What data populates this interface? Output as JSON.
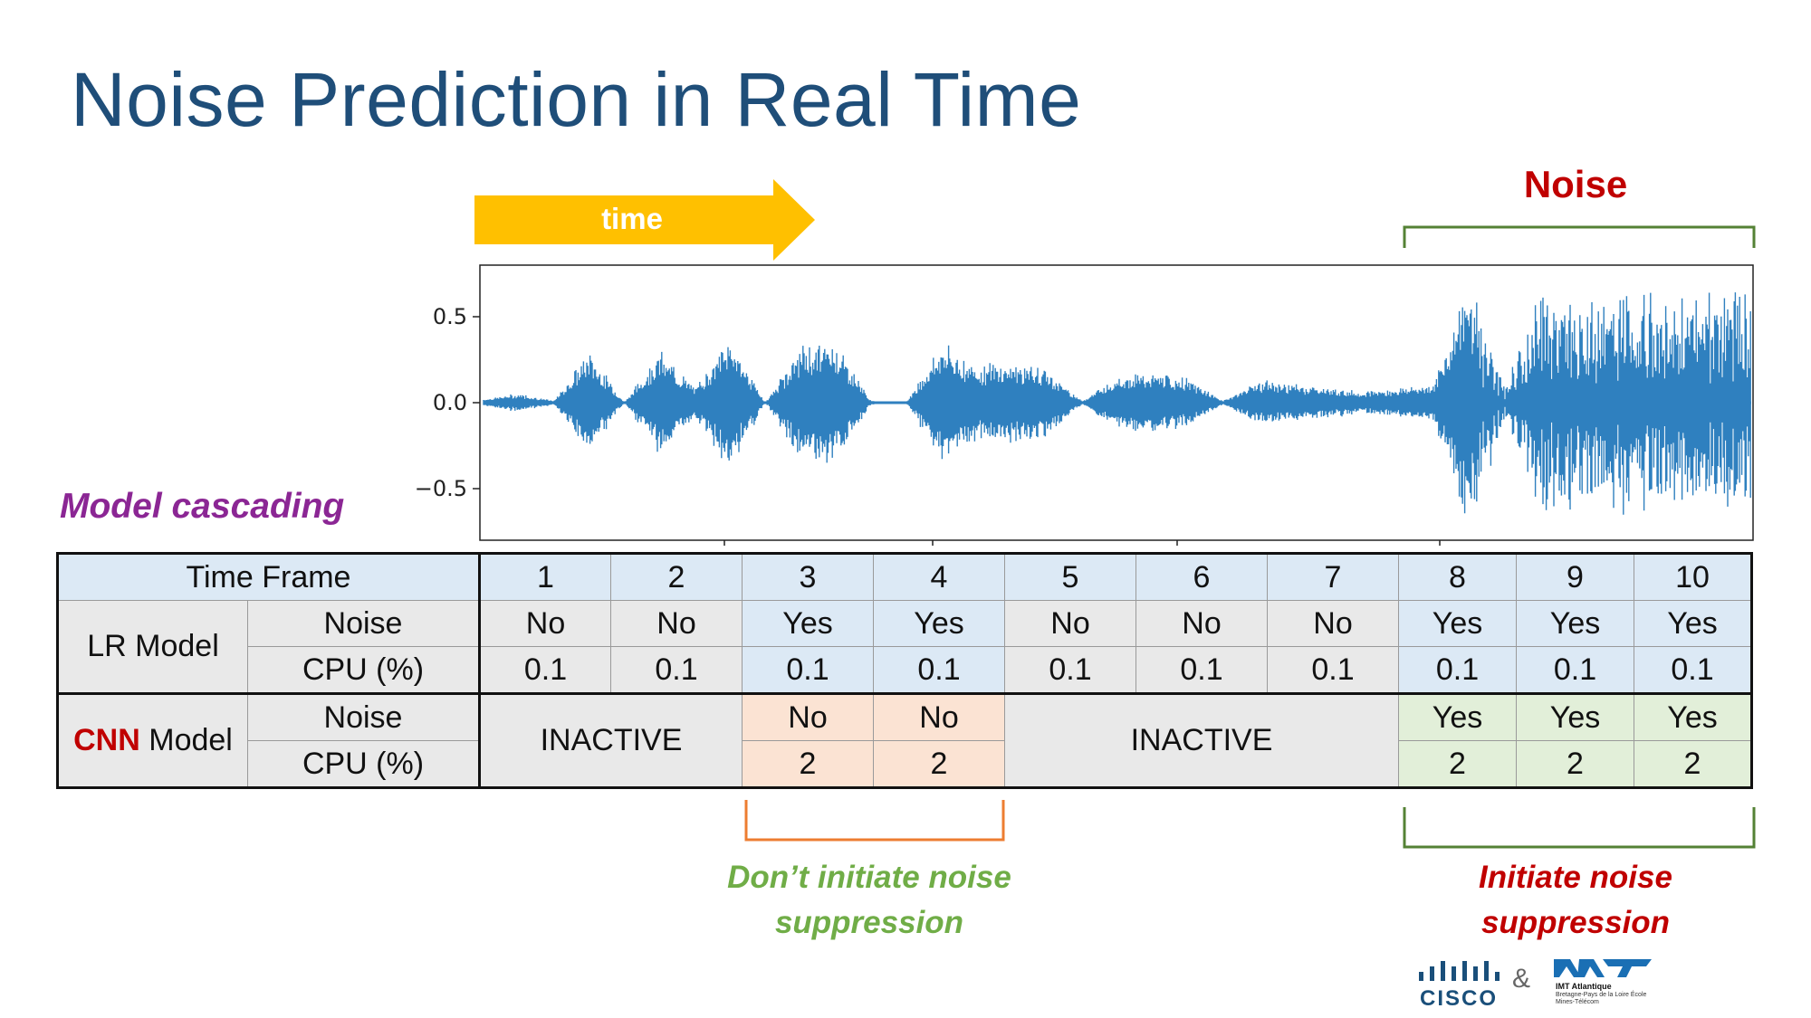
{
  "title": "Noise Prediction in Real Time",
  "arrow_label": "time",
  "noise_label": "Noise",
  "cascading_label": "Model cascading",
  "colors": {
    "title": "#1f4e79",
    "arrow": "#ffc000",
    "noise_red": "#c00000",
    "cascade_purple": "#8b2694",
    "bracket_green": "#548235",
    "bracket_orange": "#ed7d31",
    "caption_green": "#70ad47",
    "waveform": "#2f80bf"
  },
  "chart_data": {
    "type": "line",
    "ylim": [
      -0.8,
      0.8
    ],
    "yticks": [
      "0.5",
      "0.0",
      "−0.5"
    ],
    "ytick_values": [
      0.5,
      0.0,
      -0.5
    ],
    "x": [
      0,
      1,
      2,
      3,
      4,
      5,
      6,
      7,
      8,
      9,
      10,
      11,
      12,
      13,
      14,
      15,
      16,
      17,
      18,
      19,
      20,
      21,
      22,
      23,
      24,
      25,
      26,
      27,
      28,
      29,
      30,
      31,
      32,
      33,
      34,
      35,
      36
    ],
    "envelope": [
      0.02,
      0.05,
      0.01,
      0.28,
      0.0,
      0.28,
      0.08,
      0.36,
      0.0,
      0.3,
      0.33,
      0.01,
      0.0,
      0.32,
      0.2,
      0.22,
      0.18,
      0.01,
      0.15,
      0.16,
      0.13,
      0.01,
      0.12,
      0.1,
      0.08,
      0.06,
      0.08,
      0.1,
      0.68,
      0.1,
      0.6,
      0.55,
      0.6,
      0.62,
      0.55,
      0.6,
      0.6
    ]
  },
  "table": {
    "header_label": "Time Frame",
    "frames": [
      "1",
      "2",
      "3",
      "4",
      "5",
      "6",
      "7",
      "8",
      "9",
      "10"
    ],
    "lr": {
      "label": "LR Model",
      "noise_label": "Noise",
      "cpu_label": "CPU (%)",
      "noise": [
        "No",
        "No",
        "Yes",
        "Yes",
        "No",
        "No",
        "No",
        "Yes",
        "Yes",
        "Yes"
      ],
      "cpu": [
        "0.1",
        "0.1",
        "0.1",
        "0.1",
        "0.1",
        "0.1",
        "0.1",
        "0.1",
        "0.1",
        "0.1"
      ]
    },
    "cnn": {
      "label_strong": "CNN",
      "label_rest": " Model",
      "noise_label": "Noise",
      "cpu_label": "CPU (%)",
      "inactive": "INACTIVE",
      "noise_3_4": [
        "No",
        "No"
      ],
      "cpu_3_4": [
        "2",
        "2"
      ],
      "noise_8_10": [
        "Yes",
        "Yes",
        "Yes"
      ],
      "cpu_8_10": [
        "2",
        "2",
        "2"
      ]
    }
  },
  "caption_left": {
    "line1": "Don’t initiate noise",
    "line2": "suppression"
  },
  "caption_right": {
    "line1": "Initiate noise",
    "line2": "suppression"
  },
  "logos": {
    "cisco_icon": "cisco-bars-icon",
    "cisco": "CISCO",
    "ampersand": "&",
    "imt_icon": "imt-logo-icon",
    "imt": "IMT Atlantique",
    "imt_sub": "Bretagne-Pays de la Loire École Mines-Télécom"
  }
}
